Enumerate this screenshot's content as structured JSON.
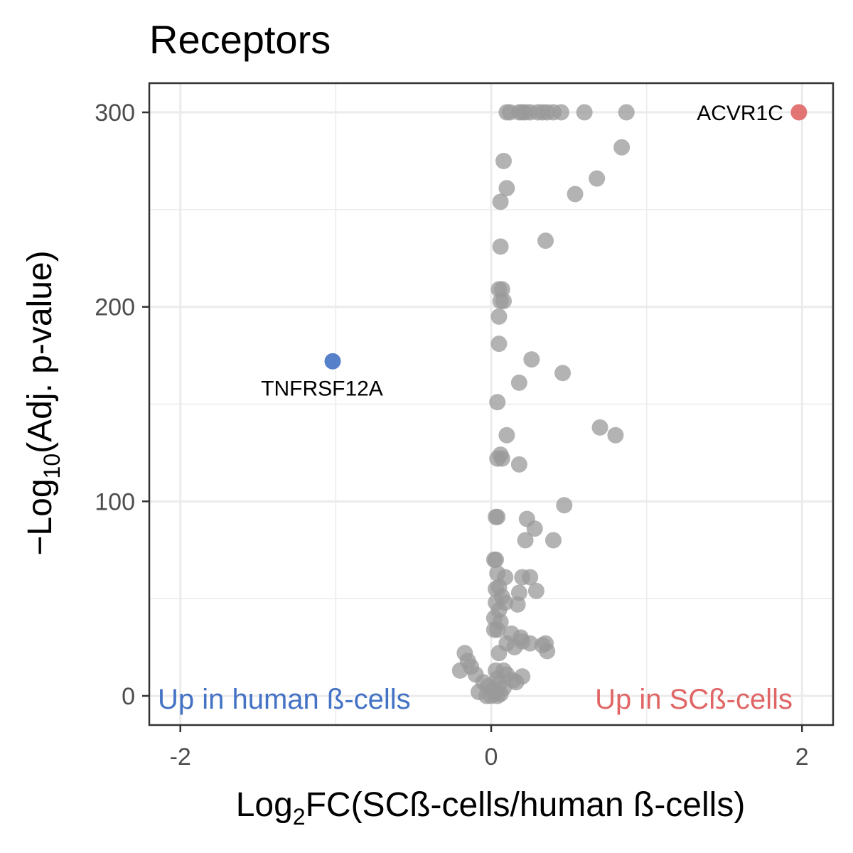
{
  "chart_data": {
    "type": "scatter",
    "title": "Receptors",
    "xlabel": {
      "prefix": "Log",
      "sub": "2",
      "suffix": "FC(SCß-cells/human ß-cells)"
    },
    "ylabel": {
      "prefix": "−Log",
      "sub": "10",
      "suffix": "(Adj. p-value)"
    },
    "xlim": [
      -2.2,
      2.2
    ],
    "ylim": [
      -15,
      315
    ],
    "x_ticks": [
      -2,
      0,
      2
    ],
    "x_tick_labels": [
      "-2",
      "0",
      "2"
    ],
    "y_ticks": [
      0,
      100,
      200,
      300
    ],
    "y_tick_labels": [
      "0",
      "100",
      "200",
      "300"
    ],
    "grid": true,
    "colors": {
      "neutral": "#999999",
      "up_human": "#4472c4",
      "up_sc": "#e06666",
      "panel_border": "#333333",
      "grid": "#ebebeb"
    },
    "annotations": {
      "left": {
        "text": "Up in human ß-cells",
        "color": "#4472c4"
      },
      "right": {
        "text": "Up in SCß-cells",
        "color": "#e06666"
      }
    },
    "highlighted": [
      {
        "label": "ACVR1C",
        "x": 1.98,
        "y": 300,
        "color": "#e06666"
      },
      {
        "label": "TNFRSF12A",
        "x": -1.02,
        "y": 172,
        "color": "#4472c4"
      }
    ],
    "points": [
      [
        0.1,
        300
      ],
      [
        0.12,
        300
      ],
      [
        0.18,
        300
      ],
      [
        0.2,
        300
      ],
      [
        0.22,
        300
      ],
      [
        0.25,
        300
      ],
      [
        0.3,
        300
      ],
      [
        0.33,
        300
      ],
      [
        0.36,
        300
      ],
      [
        0.4,
        300
      ],
      [
        0.45,
        300
      ],
      [
        0.6,
        300
      ],
      [
        0.87,
        300
      ],
      [
        0.84,
        282
      ],
      [
        0.08,
        275
      ],
      [
        0.68,
        266
      ],
      [
        0.1,
        261
      ],
      [
        0.54,
        258
      ],
      [
        0.06,
        254
      ],
      [
        0.35,
        234
      ],
      [
        0.06,
        231
      ],
      [
        0.05,
        209
      ],
      [
        0.07,
        209
      ],
      [
        0.06,
        203
      ],
      [
        0.08,
        203
      ],
      [
        0.05,
        195
      ],
      [
        0.05,
        181
      ],
      [
        0.26,
        173
      ],
      [
        0.46,
        166
      ],
      [
        0.18,
        161
      ],
      [
        0.04,
        151
      ],
      [
        0.7,
        138
      ],
      [
        0.8,
        134
      ],
      [
        0.1,
        134
      ],
      [
        0.06,
        124
      ],
      [
        0.04,
        122
      ],
      [
        0.07,
        122
      ],
      [
        0.18,
        119
      ],
      [
        0.47,
        98
      ],
      [
        0.03,
        92
      ],
      [
        0.04,
        92
      ],
      [
        0.23,
        91
      ],
      [
        0.28,
        86
      ],
      [
        0.22,
        80
      ],
      [
        0.4,
        80
      ],
      [
        0.02,
        70
      ],
      [
        0.03,
        70
      ],
      [
        0.04,
        63
      ],
      [
        0.09,
        61
      ],
      [
        0.2,
        61
      ],
      [
        0.25,
        61
      ],
      [
        0.05,
        56
      ],
      [
        0.03,
        55
      ],
      [
        0.29,
        54
      ],
      [
        0.18,
        53
      ],
      [
        0.07,
        51
      ],
      [
        0.03,
        48
      ],
      [
        0.09,
        48
      ],
      [
        0.17,
        47
      ],
      [
        0.05,
        44
      ],
      [
        0.02,
        40
      ],
      [
        0.06,
        38
      ],
      [
        0.02,
        34
      ],
      [
        0.04,
        34
      ],
      [
        0.13,
        32
      ],
      [
        0.19,
        30
      ],
      [
        0.2,
        28
      ],
      [
        0.25,
        27
      ],
      [
        0.1,
        27
      ],
      [
        0.33,
        26
      ],
      [
        0.36,
        23
      ],
      [
        0.15,
        25
      ],
      [
        0.05,
        22
      ],
      [
        0.35,
        27
      ],
      [
        -0.17,
        22
      ],
      [
        -0.15,
        18
      ],
      [
        -0.13,
        15
      ],
      [
        -0.2,
        13
      ],
      [
        -0.1,
        11
      ],
      [
        0.03,
        13
      ],
      [
        0.08,
        13
      ],
      [
        0.1,
        11
      ],
      [
        0.2,
        10
      ],
      [
        0.04,
        9
      ],
      [
        0.14,
        8
      ],
      [
        -0.05,
        7
      ],
      [
        0.16,
        7
      ],
      [
        0.05,
        6
      ],
      [
        -0.02,
        5
      ],
      [
        0.08,
        4
      ],
      [
        0.01,
        3
      ],
      [
        -0.08,
        2
      ],
      [
        0.06,
        1
      ],
      [
        0.02,
        1
      ],
      [
        -0.03,
        0
      ],
      [
        0.04,
        0
      ],
      [
        0.0,
        0
      ]
    ]
  }
}
